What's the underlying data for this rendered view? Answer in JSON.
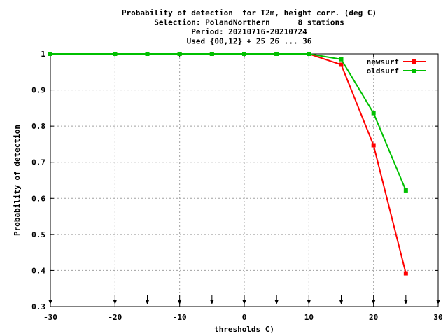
{
  "chart_data": {
    "type": "line",
    "title_lines": [
      "Probability of detection  for T2m, height corr. (deg C)",
      "Selection: PolandNorthern      8 stations",
      "Period: 20210716-20210724",
      "Used {00,12} + 25 26 ... 36"
    ],
    "xlabel": "thresholds C)",
    "ylabel": "Probability of detection",
    "xlim": [
      -30,
      30
    ],
    "ylim": [
      0.3,
      1
    ],
    "x_ticks": [
      -30,
      -20,
      -10,
      0,
      10,
      20,
      30
    ],
    "y_ticks": [
      0.3,
      0.4,
      0.5,
      0.6,
      0.7,
      0.8,
      0.9,
      1
    ],
    "y_tick_labels": [
      "0.3",
      "0.4",
      "0.5",
      "0.6",
      "0.7",
      "0.8",
      "0.9",
      "1"
    ],
    "grid": true,
    "legend_position": "top-right",
    "threshold_markers": [
      -30,
      -20,
      -15,
      -10,
      -5,
      0,
      5,
      10,
      15,
      20,
      25,
      30
    ],
    "series": [
      {
        "name": "newsurf",
        "color": "#ff0000",
        "x": [
          -30,
          -20,
          -15,
          -10,
          -5,
          0,
          5,
          10,
          15,
          20,
          25
        ],
        "y": [
          1,
          1,
          1,
          1,
          1,
          1,
          1,
          1,
          0.97,
          0.747,
          0.392
        ]
      },
      {
        "name": "oldsurf",
        "color": "#00c000",
        "x": [
          -30,
          -20,
          -15,
          -10,
          -5,
          0,
          5,
          10,
          15,
          20,
          25
        ],
        "y": [
          1,
          1,
          1,
          1,
          1,
          1,
          1,
          1,
          0.985,
          0.836,
          0.622
        ]
      }
    ]
  }
}
